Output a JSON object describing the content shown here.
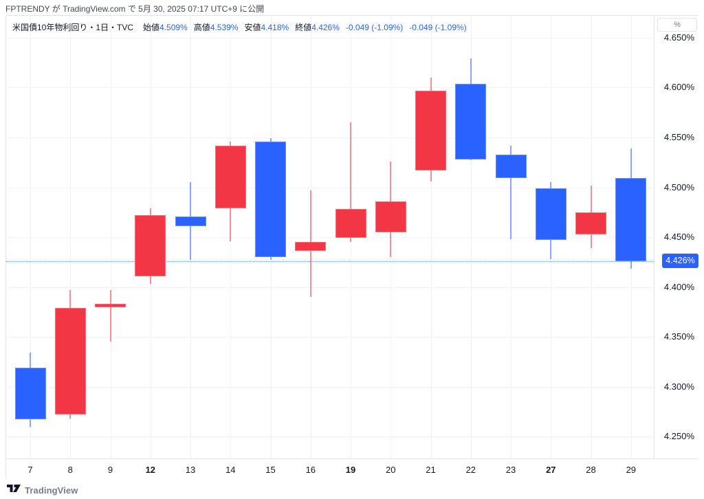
{
  "attribution": "FPTRENDY が TradingView.com で 5月 30, 2025 07:17 UTC+9 に公開",
  "legend": {
    "title": "米国債10年物利回り・1日・TVC",
    "fields": [
      {
        "label": "始値",
        "value": "4.509%"
      },
      {
        "label": "高値",
        "value": "4.539%"
      },
      {
        "label": "安値",
        "value": "4.418%"
      },
      {
        "label": "終値",
        "value": "4.426%"
      }
    ],
    "changes": [
      "-0.049 (-1.09%)",
      "-0.049 (-1.09%)"
    ]
  },
  "price_scale": {
    "unit_button": "%",
    "current": {
      "value": 4.426,
      "label": "4.426%"
    }
  },
  "footer": {
    "logo_text": "TradingView"
  },
  "colors": {
    "up": "#F23645",
    "down": "#2962FF",
    "up_wick": "rgba(242,54,69,0.55)",
    "down_wick": "rgba(41,98,255,0.55)",
    "accent": "#2962FF",
    "grid": "#F0F3FA",
    "border": "#E0E3EB",
    "text": "#131722",
    "muted": "#787B86"
  },
  "chart_data": {
    "type": "candlestick",
    "title": "米国債10年物利回り・1日・TVC",
    "symbol": "米国債10年物利回り",
    "interval": "1日",
    "exchange": "TVC",
    "ylabel": "%",
    "ylim": [
      4.228,
      4.672
    ],
    "grid": true,
    "up_color_meaning": "red = 陽線 (close > open)",
    "down_color_meaning": "blue = 陰線 (close < open)",
    "y_axis": {
      "top_value": 4.672,
      "bottom_value": 4.228,
      "grid": [
        {
          "value": 4.65,
          "label": "4.650%"
        },
        {
          "value": 4.6,
          "label": "4.600%"
        },
        {
          "value": 4.55,
          "label": "4.550%"
        },
        {
          "value": 4.5,
          "label": "4.500%"
        },
        {
          "value": 4.45,
          "label": "4.450%"
        },
        {
          "value": 4.4,
          "label": "4.400%"
        },
        {
          "value": 4.35,
          "label": "4.350%"
        },
        {
          "value": 4.3,
          "label": "4.300%"
        },
        {
          "value": 4.25,
          "label": "4.250%"
        }
      ]
    },
    "x_axis": {
      "first_center": 35,
      "spacing": 58.25,
      "month": "2025-05"
    },
    "current": {
      "value": 4.426,
      "label": "4.426%"
    },
    "candles": [
      {
        "date": "7",
        "bold": false,
        "open": 4.319,
        "high": 4.334,
        "low": 4.26,
        "close": 4.267,
        "direction": "down"
      },
      {
        "date": "8",
        "bold": false,
        "open": 4.272,
        "high": 4.397,
        "low": 4.268,
        "close": 4.379,
        "direction": "up"
      },
      {
        "date": "9",
        "bold": false,
        "open": 4.38,
        "high": 4.397,
        "low": 4.345,
        "close": 4.383,
        "direction": "up"
      },
      {
        "date": "12",
        "bold": true,
        "open": 4.411,
        "high": 4.479,
        "low": 4.403,
        "close": 4.472,
        "direction": "up"
      },
      {
        "date": "13",
        "bold": false,
        "open": 4.471,
        "high": 4.505,
        "low": 4.427,
        "close": 4.461,
        "direction": "down"
      },
      {
        "date": "14",
        "bold": false,
        "open": 4.479,
        "high": 4.546,
        "low": 4.446,
        "close": 4.542,
        "direction": "up"
      },
      {
        "date": "15",
        "bold": false,
        "open": 4.546,
        "high": 4.549,
        "low": 4.427,
        "close": 4.43,
        "direction": "down"
      },
      {
        "date": "16",
        "bold": false,
        "open": 4.436,
        "high": 4.497,
        "low": 4.39,
        "close": 4.445,
        "direction": "up"
      },
      {
        "date": "19",
        "bold": true,
        "open": 4.449,
        "high": 4.565,
        "low": 4.445,
        "close": 4.478,
        "direction": "up"
      },
      {
        "date": "20",
        "bold": false,
        "open": 4.455,
        "high": 4.526,
        "low": 4.43,
        "close": 4.486,
        "direction": "up"
      },
      {
        "date": "21",
        "bold": false,
        "open": 4.517,
        "high": 4.61,
        "low": 4.506,
        "close": 4.597,
        "direction": "up"
      },
      {
        "date": "22",
        "bold": false,
        "open": 4.604,
        "high": 4.629,
        "low": 4.527,
        "close": 4.528,
        "direction": "down"
      },
      {
        "date": "23",
        "bold": false,
        "open": 4.533,
        "high": 4.542,
        "low": 4.448,
        "close": 4.509,
        "direction": "down"
      },
      {
        "date": "27",
        "bold": true,
        "open": 4.499,
        "high": 4.505,
        "low": 4.428,
        "close": 4.447,
        "direction": "down"
      },
      {
        "date": "28",
        "bold": false,
        "open": 4.453,
        "high": 4.502,
        "low": 4.439,
        "close": 4.475,
        "direction": "up"
      },
      {
        "date": "29",
        "bold": false,
        "open": 4.509,
        "high": 4.539,
        "low": 4.418,
        "close": 4.426,
        "direction": "down"
      }
    ]
  }
}
